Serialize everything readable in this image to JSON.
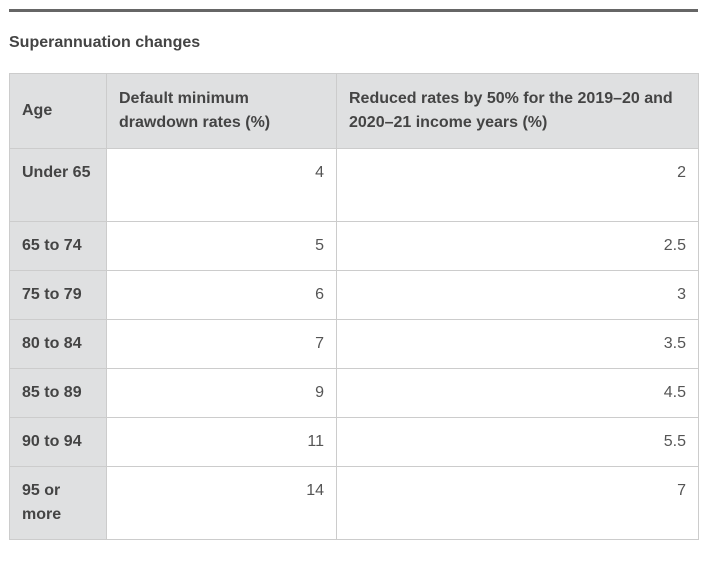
{
  "title": "Superannuation changes",
  "table": {
    "headers": [
      "Age",
      "Default minimum drawdown rates (%)",
      "Reduced rates by 50% for the 2019–20 and 2020–21 income years (%)"
    ],
    "rows": [
      {
        "age": "Under 65",
        "default": "4",
        "reduced": "2"
      },
      {
        "age": "65 to 74",
        "default": "5",
        "reduced": "2.5"
      },
      {
        "age": "75 to 79",
        "default": "6",
        "reduced": "3"
      },
      {
        "age": "80 to 84",
        "default": "7",
        "reduced": "3.5"
      },
      {
        "age": "85 to 89",
        "default": "9",
        "reduced": "4.5"
      },
      {
        "age": "90 to 94",
        "default": "11",
        "reduced": "5.5"
      },
      {
        "age": "95 or more",
        "default": "14",
        "reduced": "7"
      }
    ]
  }
}
